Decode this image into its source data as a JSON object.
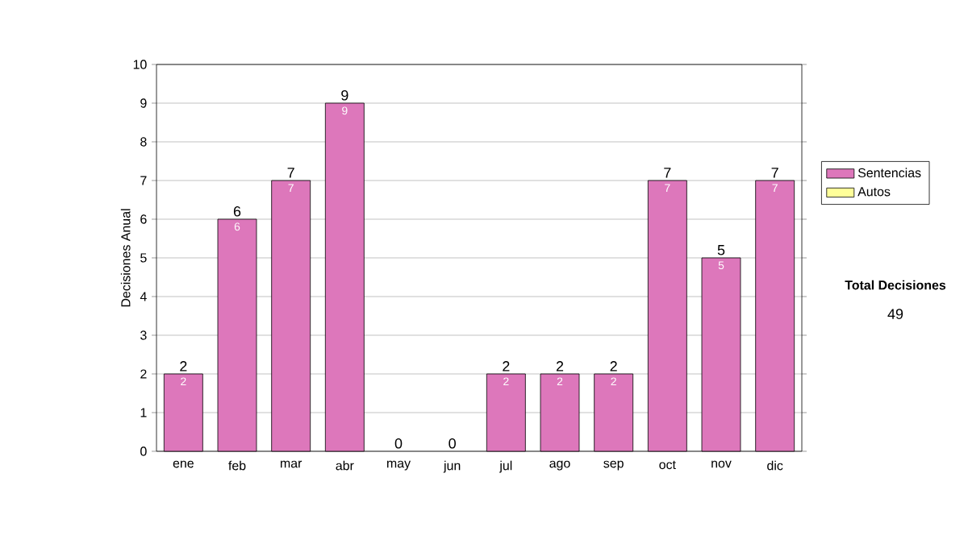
{
  "chart_data": {
    "type": "bar",
    "stacked": true,
    "ylabel": "Decisiones Anual",
    "categories": [
      "ene",
      "feb",
      "mar",
      "abr",
      "may",
      "jun",
      "jul",
      "ago",
      "sep",
      "oct",
      "nov",
      "dic"
    ],
    "series": [
      {
        "name": "Sentencias",
        "color": "#dd77bb",
        "values": [
          2,
          6,
          7,
          9,
          0,
          0,
          2,
          2,
          2,
          7,
          5,
          7
        ],
        "value_labels": [
          "2",
          "6",
          "7",
          "9",
          null,
          null,
          "2",
          "2",
          "2",
          "7",
          "5",
          "7"
        ]
      },
      {
        "name": "Autos",
        "color": "#ffff99",
        "values": [
          0,
          0,
          0,
          0,
          0,
          0,
          0,
          0,
          0,
          0,
          0,
          0
        ]
      }
    ],
    "totals": [
      "2",
      "6",
      "7",
      "9",
      "0",
      "0",
      "2",
      "2",
      "2",
      "7",
      "5",
      "7"
    ],
    "ylim": [
      0,
      10
    ],
    "yticks": [
      0,
      1,
      2,
      3,
      4,
      5,
      6,
      7,
      8,
      9,
      10
    ],
    "grid": "y",
    "legend": "right",
    "annotations": [
      "Total Decisiones",
      "49"
    ]
  }
}
